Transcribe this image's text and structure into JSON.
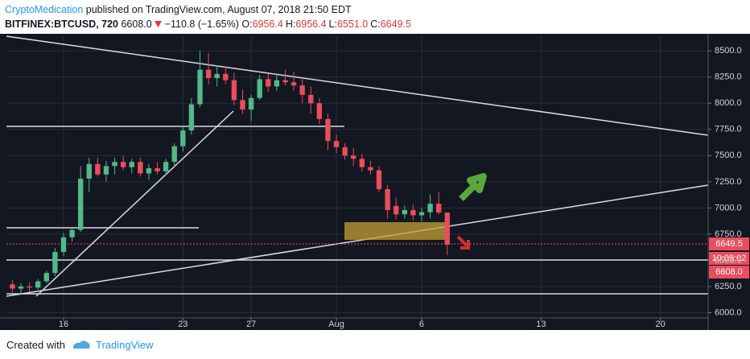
{
  "header": {
    "author": "CryptoMedication",
    "published": "published on TradingView.com, August 07, 2018 21:50 EDT",
    "symbol": "BITFINEX:BTCUSD, 720",
    "price": "6608.0",
    "change": "−110.8 (−1.65%)",
    "ohlc": [
      {
        "key": "O:",
        "value": "6956.4"
      },
      {
        "key": "H:",
        "value": "6956.4"
      },
      {
        "key": "L:",
        "value": "6551.0"
      },
      {
        "key": "C:",
        "value": "6649.5"
      }
    ]
  },
  "chart_data": {
    "type": "candlestick",
    "up_color": "#53b987",
    "down_color": "#eb4d5c",
    "x": [
      13,
      13.5,
      14,
      14.5,
      15,
      15.5,
      16,
      16.5,
      17,
      17.5,
      18,
      18.5,
      19,
      19.5,
      20,
      20.5,
      21,
      21.5,
      22,
      22.5,
      23,
      23.5,
      24,
      24.5,
      25,
      25.5,
      26,
      26.5,
      27,
      27.5,
      28,
      28.5,
      29,
      29.5,
      30,
      30.5,
      31,
      31.5,
      32,
      32.5,
      33,
      33.5,
      34,
      34.5,
      35,
      35.5,
      36,
      36.5,
      37,
      37.5,
      38,
      38.5
    ],
    "open": [
      6270,
      6230,
      6250,
      6240,
      6300,
      6380,
      6580,
      6720,
      6790,
      7280,
      7420,
      7320,
      7400,
      7440,
      7390,
      7440,
      7330,
      7380,
      7350,
      7440,
      7590,
      7740,
      7990,
      8320,
      8240,
      8280,
      8220,
      8030,
      7940,
      8050,
      8230,
      8160,
      8220,
      8200,
      8170,
      8080,
      8000,
      7850,
      7640,
      7580,
      7500,
      7470,
      7390,
      7360,
      7180,
      7020,
      6940,
      6980,
      6930,
      6960,
      7040,
      6956.4
    ],
    "high": [
      6310,
      6280,
      6290,
      6320,
      6400,
      6620,
      6760,
      6820,
      7400,
      7480,
      7480,
      7450,
      7480,
      7500,
      7470,
      7480,
      7420,
      7440,
      7470,
      7620,
      7780,
      8050,
      8500,
      8480,
      8360,
      8350,
      8290,
      8130,
      8080,
      8270,
      8280,
      8270,
      8320,
      8300,
      8230,
      8160,
      8050,
      7900,
      7700,
      7620,
      7570,
      7520,
      7450,
      7400,
      7220,
      7100,
      7020,
      7030,
      7000,
      7130,
      7150,
      6956.4
    ],
    "low": [
      6190,
      6170,
      6200,
      6220,
      6280,
      6350,
      6540,
      6680,
      6770,
      7150,
      7300,
      7250,
      7320,
      7360,
      7330,
      7300,
      7270,
      7320,
      7310,
      7400,
      7540,
      7700,
      7960,
      8180,
      8160,
      8180,
      7980,
      7900,
      7830,
      8030,
      8110,
      8120,
      8170,
      8120,
      8000,
      7900,
      7800,
      7550,
      7520,
      7460,
      7400,
      7350,
      7320,
      7150,
      6900,
      6890,
      6900,
      6880,
      6870,
      6900,
      6940,
      6551.0
    ],
    "close": [
      6230,
      6250,
      6240,
      6300,
      6380,
      6580,
      6720,
      6790,
      7280,
      7420,
      7320,
      7400,
      7440,
      7390,
      7440,
      7330,
      7380,
      7350,
      7440,
      7590,
      7740,
      7990,
      8320,
      8240,
      8280,
      8220,
      8030,
      7940,
      8050,
      8230,
      8160,
      8220,
      8200,
      8170,
      8080,
      8000,
      7850,
      7640,
      7580,
      7500,
      7470,
      7390,
      7360,
      7180,
      6980,
      6940,
      6980,
      6930,
      6960,
      7040,
      6956.4,
      6649.5
    ],
    "xlim": [
      12.65,
      53.8
    ],
    "xticks": [
      16,
      23,
      27,
      {
        "value": 32,
        "label": "Aug"
      },
      {
        "value": 37,
        "label": "6"
      },
      {
        "value": 44,
        "label": "13"
      },
      {
        "value": 51,
        "label": "20"
      }
    ],
    "ylim": [
      5950,
      8640
    ],
    "yticks": [
      {
        "value": 6000,
        "label": "6000.0"
      },
      {
        "value": 6250,
        "label": "6250.0"
      },
      {
        "value": 6500,
        "label": "6500.0"
      },
      {
        "value": 6750,
        "label": "6750.0"
      },
      {
        "value": 7000,
        "label": "7000.0"
      },
      {
        "value": 7250,
        "label": "7250.0"
      },
      {
        "value": 7500,
        "label": "7500.0"
      },
      {
        "value": 7750,
        "label": "7750.0"
      },
      {
        "value": 8000,
        "label": "8000.0"
      },
      {
        "value": 8250,
        "label": "8250.0"
      },
      {
        "value": 8500,
        "label": "8500.0"
      }
    ],
    "grid": true,
    "price_tags": [
      "6649.5",
      "10:09:02",
      "6608.0"
    ]
  },
  "footer": {
    "text": "Created with",
    "brand": "TradingView"
  }
}
